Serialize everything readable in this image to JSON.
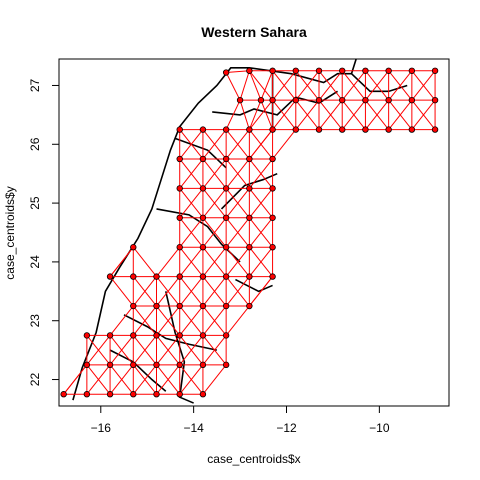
{
  "chart_data": {
    "type": "scatter",
    "title": "Western Sahara",
    "xlabel": "case_centroids$x",
    "ylabel": "case_centroids$y",
    "xlim": [
      -16.9,
      -8.5
    ],
    "ylim": [
      21.55,
      27.45
    ],
    "xticks": [
      -16,
      -14,
      -12,
      -10
    ],
    "yticks": [
      22,
      23,
      24,
      25,
      26,
      27
    ],
    "grid": false,
    "series": [
      {
        "values": [
          [
            -13.3,
            27.22
          ],
          [
            -12.8,
            27.25
          ],
          [
            -12.3,
            27.25
          ],
          [
            -11.8,
            27.25
          ],
          [
            -11.3,
            27.25
          ],
          [
            -10.8,
            27.25
          ],
          [
            -10.3,
            27.25
          ],
          [
            -9.8,
            27.25
          ],
          [
            -9.3,
            27.25
          ],
          [
            -8.8,
            27.25
          ],
          [
            -13.0,
            26.75
          ],
          [
            -12.55,
            26.75
          ],
          [
            -12.3,
            26.75
          ],
          [
            -11.8,
            26.75
          ],
          [
            -11.3,
            26.75
          ],
          [
            -10.8,
            26.75
          ],
          [
            -10.3,
            26.75
          ],
          [
            -9.8,
            26.75
          ],
          [
            -9.3,
            26.75
          ],
          [
            -8.8,
            26.75
          ],
          [
            -12.3,
            26.25
          ],
          [
            -11.8,
            26.25
          ],
          [
            -11.3,
            26.25
          ],
          [
            -10.8,
            26.25
          ],
          [
            -10.3,
            26.25
          ],
          [
            -9.8,
            26.25
          ],
          [
            -9.3,
            26.25
          ],
          [
            -8.8,
            26.25
          ],
          [
            -14.3,
            26.25
          ],
          [
            -13.8,
            26.25
          ],
          [
            -13.3,
            26.25
          ],
          [
            -12.8,
            26.25
          ],
          [
            -14.3,
            25.75
          ],
          [
            -13.8,
            25.75
          ],
          [
            -13.3,
            25.75
          ],
          [
            -12.8,
            25.75
          ],
          [
            -12.3,
            25.75
          ],
          [
            -14.3,
            25.25
          ],
          [
            -13.8,
            25.25
          ],
          [
            -13.3,
            25.25
          ],
          [
            -12.8,
            25.25
          ],
          [
            -12.3,
            25.25
          ],
          [
            -14.3,
            24.75
          ],
          [
            -13.8,
            24.75
          ],
          [
            -13.3,
            24.75
          ],
          [
            -12.8,
            24.75
          ],
          [
            -12.3,
            24.75
          ],
          [
            -14.3,
            24.25
          ],
          [
            -13.8,
            24.25
          ],
          [
            -13.3,
            24.25
          ],
          [
            -12.8,
            24.25
          ],
          [
            -12.3,
            24.25
          ],
          [
            -15.3,
            24.25
          ],
          [
            -15.3,
            23.75
          ],
          [
            -14.8,
            23.75
          ],
          [
            -14.3,
            23.75
          ],
          [
            -13.8,
            23.75
          ],
          [
            -13.3,
            23.75
          ],
          [
            -12.8,
            23.75
          ],
          [
            -12.3,
            23.75
          ],
          [
            -15.8,
            23.75
          ],
          [
            -15.3,
            23.25
          ],
          [
            -14.8,
            23.25
          ],
          [
            -14.3,
            23.25
          ],
          [
            -13.8,
            23.25
          ],
          [
            -13.3,
            23.25
          ],
          [
            -12.8,
            23.25
          ],
          [
            -16.3,
            22.75
          ],
          [
            -15.8,
            22.75
          ],
          [
            -15.3,
            22.75
          ],
          [
            -14.8,
            22.75
          ],
          [
            -14.3,
            22.75
          ],
          [
            -13.8,
            22.75
          ],
          [
            -13.3,
            22.75
          ],
          [
            -16.3,
            22.25
          ],
          [
            -15.8,
            22.25
          ],
          [
            -15.3,
            22.25
          ],
          [
            -14.8,
            22.25
          ],
          [
            -14.3,
            22.25
          ],
          [
            -13.8,
            22.25
          ],
          [
            -13.3,
            22.25
          ],
          [
            -16.8,
            21.75
          ],
          [
            -16.3,
            21.75
          ],
          [
            -15.8,
            21.75
          ],
          [
            -15.3,
            21.75
          ],
          [
            -14.8,
            21.75
          ],
          [
            -14.3,
            21.75
          ],
          [
            -13.8,
            21.75
          ]
        ]
      }
    ]
  }
}
